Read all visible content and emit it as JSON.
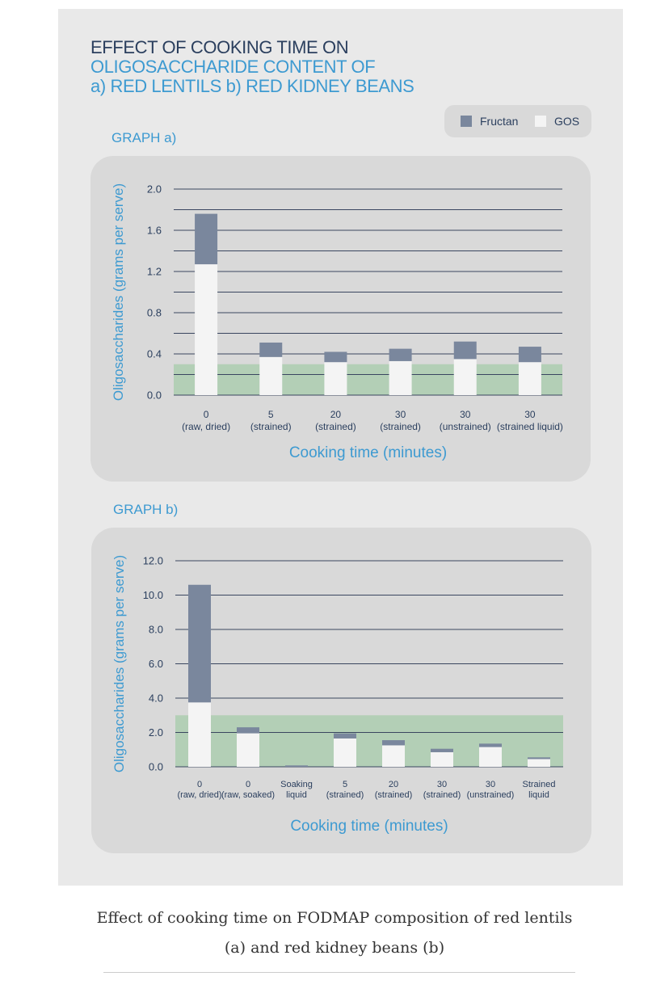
{
  "title": {
    "line1": "EFFECT OF COOKING TIME ON",
    "line2": "OLIGOSACCHARIDE CONTENT OF",
    "line3": "a) RED LENTILS b) RED KIDNEY BEANS"
  },
  "legend": {
    "fructan": "Fructan",
    "gos": "GOS"
  },
  "colors": {
    "fructan": "#7a879d",
    "gos": "#f4f4f4",
    "threshold": "#b3cfb6",
    "accent": "#3d9ad1",
    "title_dark": "#2b3f5e"
  },
  "caption": {
    "line1": "Effect of cooking time on FODMAP composition of red lentils",
    "line2": "(a) and red kidney beans (b)"
  },
  "chart_data": [
    {
      "type": "bar",
      "stacked": true,
      "panel_label": "GRAPH a)",
      "xlabel": "Cooking time (minutes)",
      "ylabel": "Oligosaccharides (grams per serve)",
      "ylim": [
        0,
        2.0
      ],
      "yticks": [
        0.0,
        0.4,
        0.8,
        1.2,
        1.6,
        2.0
      ],
      "ytick_labels": [
        "0.0",
        "0.4",
        "0.8",
        "1.2",
        "1.6",
        "2.0"
      ],
      "grid_step": 0.2,
      "threshold": 0.3,
      "categories": [
        [
          "0",
          "(raw, dried)"
        ],
        [
          "5",
          "(strained)"
        ],
        [
          "20",
          "(strained)"
        ],
        [
          "30",
          "(strained)"
        ],
        [
          "30",
          "(unstrained)"
        ],
        [
          "30",
          "(strained liquid)"
        ]
      ],
      "series": [
        {
          "name": "GOS",
          "values": [
            1.27,
            0.37,
            0.32,
            0.33,
            0.35,
            0.32
          ]
        },
        {
          "name": "Fructan",
          "values": [
            0.49,
            0.14,
            0.1,
            0.12,
            0.17,
            0.15
          ]
        }
      ]
    },
    {
      "type": "bar",
      "stacked": true,
      "panel_label": "GRAPH b)",
      "xlabel": "Cooking time (minutes)",
      "ylabel": "Oligosaccharides (grams per serve)",
      "ylim": [
        0,
        12.0
      ],
      "yticks": [
        0.0,
        2.0,
        4.0,
        6.0,
        8.0,
        10.0,
        12.0
      ],
      "ytick_labels": [
        "0.0",
        "2.0",
        "4.0",
        "6.0",
        "8.0",
        "10.0",
        "12.0"
      ],
      "grid_step": 2.0,
      "threshold": 3.0,
      "categories": [
        [
          "0",
          "(raw, dried)"
        ],
        [
          "0",
          "(raw, soaked)"
        ],
        [
          "Soaking",
          "liquid"
        ],
        [
          "5",
          "(strained)"
        ],
        [
          "20",
          "(strained)"
        ],
        [
          "30",
          "(strained)"
        ],
        [
          "30",
          "(unstrained)"
        ],
        [
          "Strained",
          "liquid"
        ]
      ],
      "series": [
        {
          "name": "GOS",
          "values": [
            3.75,
            1.95,
            0.0,
            1.65,
            1.25,
            0.85,
            1.15,
            0.45
          ]
        },
        {
          "name": "Fructan",
          "values": [
            6.85,
            0.35,
            0.08,
            0.3,
            0.3,
            0.2,
            0.2,
            0.1
          ]
        }
      ]
    }
  ]
}
